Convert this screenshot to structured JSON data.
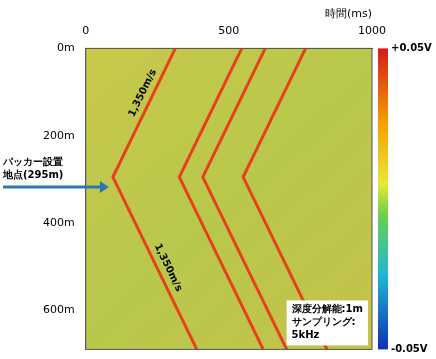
{
  "chart_data": {
    "type": "line",
    "x_label": "時間(ms)",
    "xlim": [
      0,
      1000
    ],
    "xticks": [
      0,
      500,
      1000
    ],
    "ylim": [
      0,
      690
    ],
    "yticks": [
      {
        "value": 0,
        "label": "0m"
      },
      {
        "value": 200,
        "label": "200m"
      },
      {
        "value": 400,
        "label": "400m"
      },
      {
        "value": 600,
        "label": "600m"
      }
    ],
    "grid": false,
    "color": "#e8401c",
    "wavefronts": [
      {
        "x": [
          313,
          95,
          388
        ],
        "values": [
          0,
          295,
          690
        ]
      },
      {
        "x": [
          545,
          327,
          620
        ],
        "values": [
          0,
          295,
          690
        ]
      },
      {
        "x": [
          627,
          409,
          702
        ],
        "values": [
          0,
          295,
          690
        ]
      },
      {
        "x": [
          768,
          550,
          843
        ],
        "values": [
          0,
          295,
          690
        ]
      }
    ],
    "packer": {
      "lines": [
        "パッカー設置",
        "地点(295m)"
      ],
      "depth": 295
    },
    "velocity": {
      "value": 1350,
      "label": "1,350m/s"
    },
    "note": [
      "深度分解能:1m",
      "サンプリング:",
      "5kHz"
    ],
    "colorbar": {
      "range": [
        -0.05,
        0.05
      ],
      "ticks": [
        {
          "value": 0.05,
          "label": "+0.05V"
        },
        {
          "value": -0.05,
          "label": "-0.05V"
        }
      ]
    }
  }
}
